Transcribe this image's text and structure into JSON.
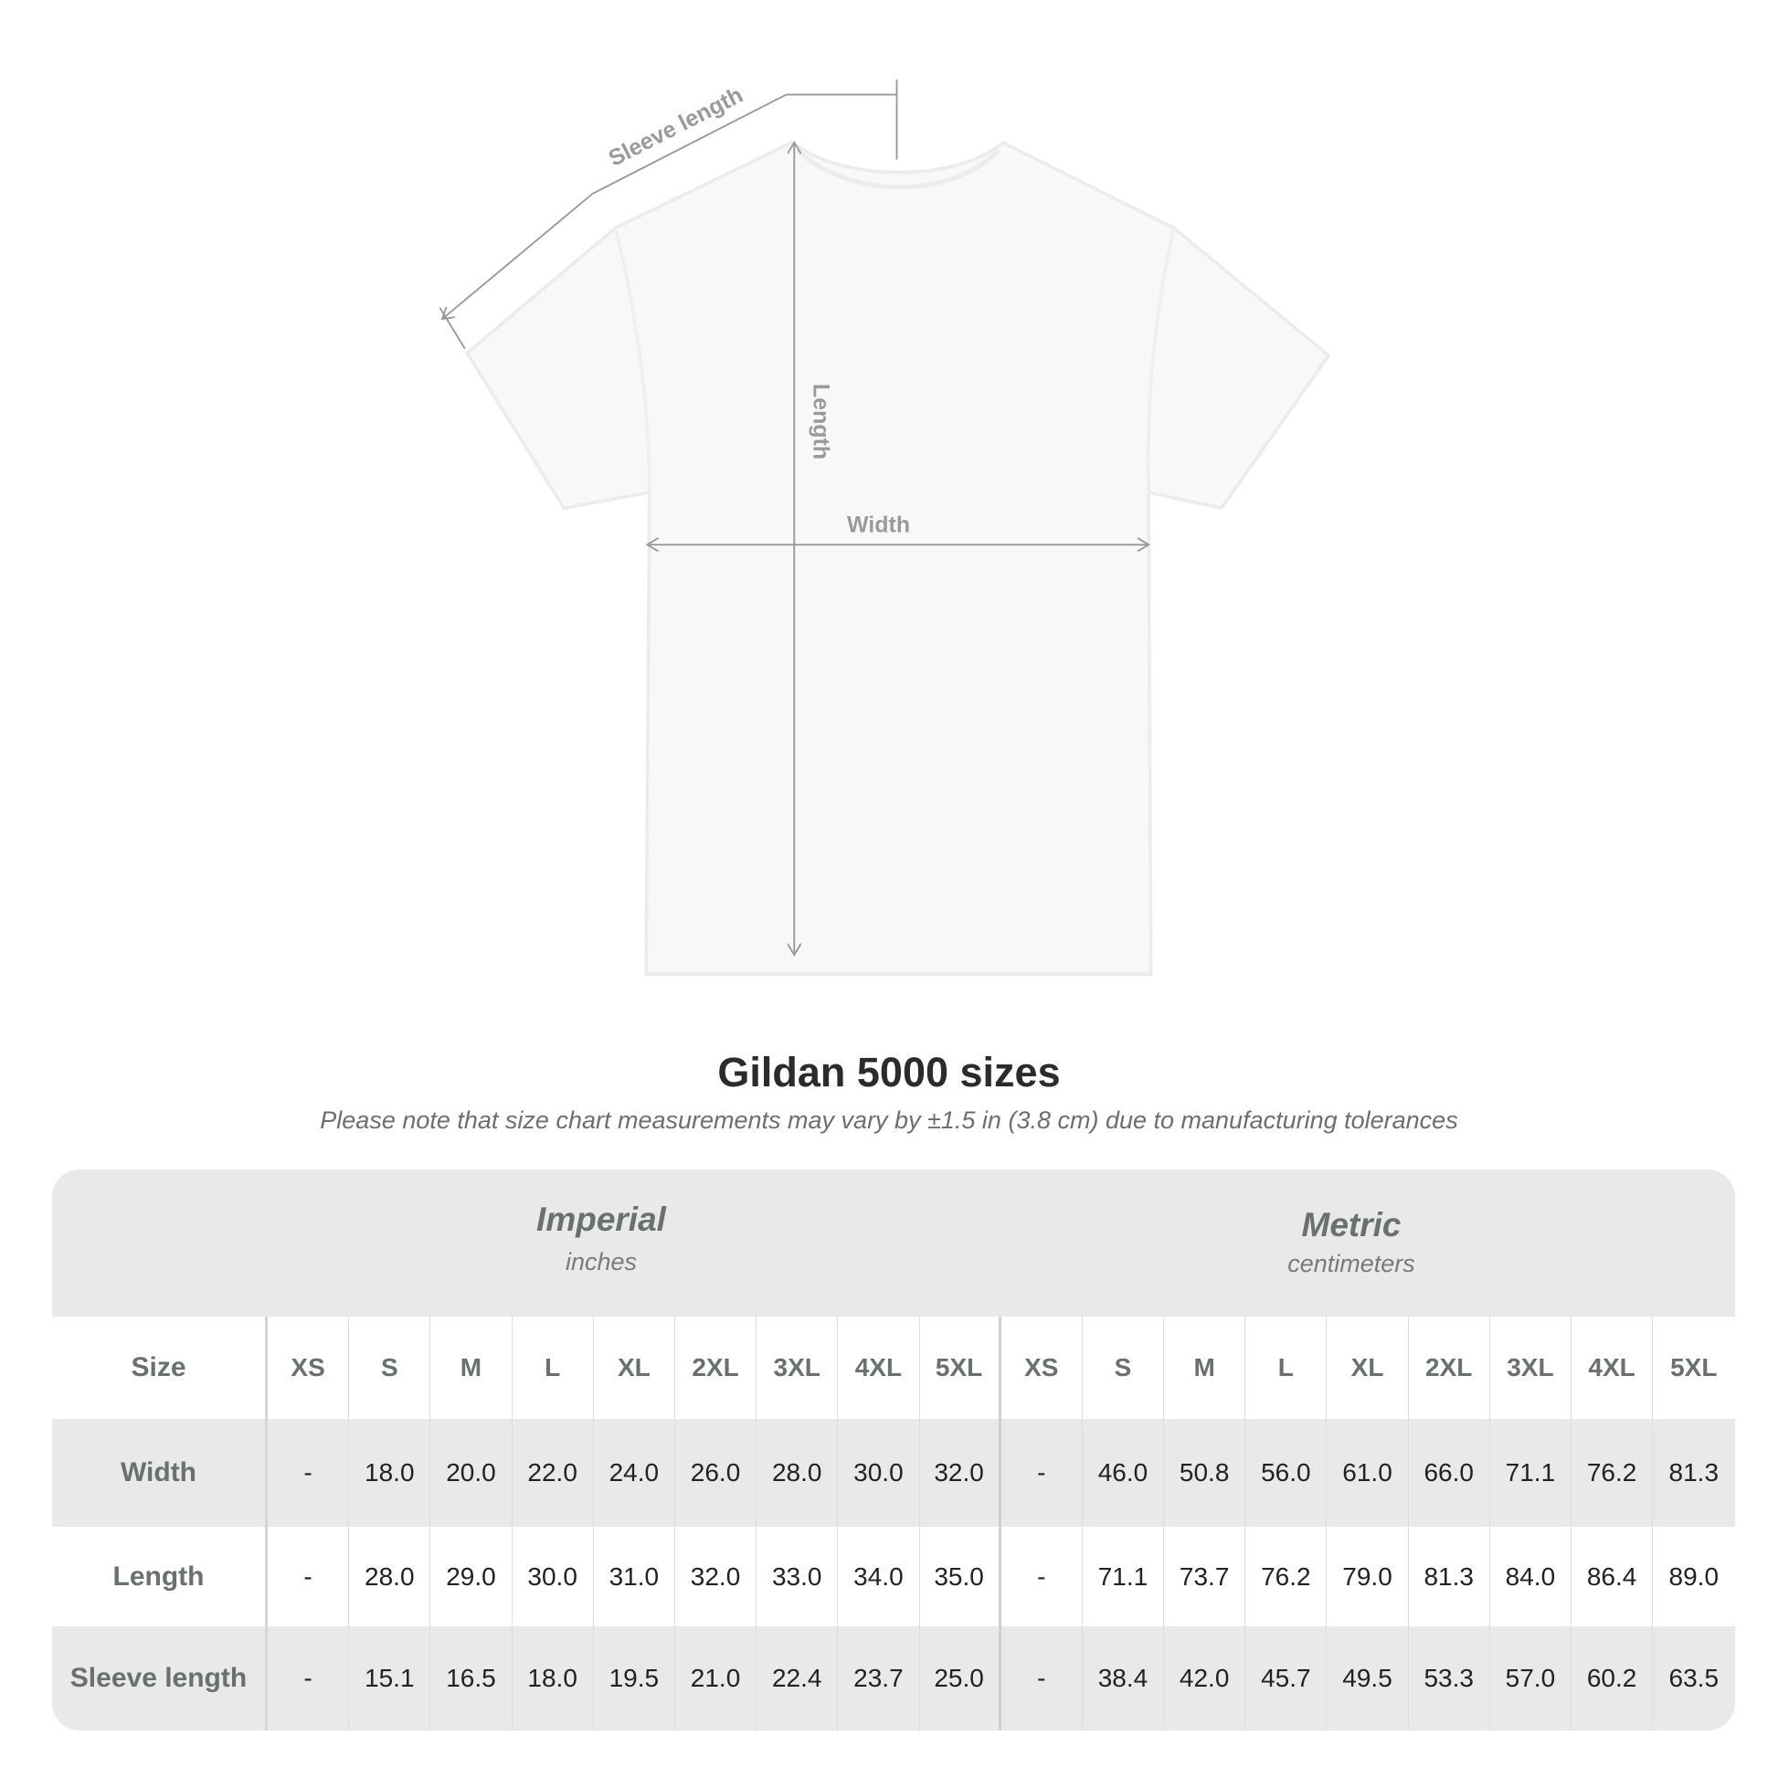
{
  "diagram": {
    "labels": {
      "sleeve": "Sleeve length",
      "length": "Length",
      "width": "Width"
    },
    "line_color": "#9a9a9a"
  },
  "title": "Gildan 5000 sizes",
  "note": "Please note that size chart measurements may vary by ±1.5 in (3.8 cm) due to manufacturing tolerances",
  "table": {
    "imperial": {
      "name": "Imperial",
      "unit": "inches"
    },
    "metric": {
      "name": "Metric",
      "unit": "centimeters"
    },
    "size_label": "Size",
    "sizes": [
      "XS",
      "S",
      "M",
      "L",
      "XL",
      "2XL",
      "3XL",
      "4XL",
      "5XL"
    ],
    "rows": [
      {
        "label": "Width",
        "imperial": [
          "-",
          "18.0",
          "20.0",
          "22.0",
          "24.0",
          "26.0",
          "28.0",
          "30.0",
          "32.0"
        ],
        "metric": [
          "-",
          "46.0",
          "50.8",
          "56.0",
          "61.0",
          "66.0",
          "71.1",
          "76.2",
          "81.3"
        ]
      },
      {
        "label": "Length",
        "imperial": [
          "-",
          "28.0",
          "29.0",
          "30.0",
          "31.0",
          "32.0",
          "33.0",
          "34.0",
          "35.0"
        ],
        "metric": [
          "-",
          "71.1",
          "73.7",
          "76.2",
          "79.0",
          "81.3",
          "84.0",
          "86.4",
          "89.0"
        ]
      },
      {
        "label": "Sleeve length",
        "imperial": [
          "-",
          "15.1",
          "16.5",
          "18.0",
          "19.5",
          "21.0",
          "22.4",
          "23.7",
          "25.0"
        ],
        "metric": [
          "-",
          "38.4",
          "42.0",
          "45.7",
          "49.5",
          "53.3",
          "57.0",
          "60.2",
          "63.5"
        ]
      }
    ],
    "band_color": "#e9e9e9",
    "label_color": "#6a6f70"
  }
}
